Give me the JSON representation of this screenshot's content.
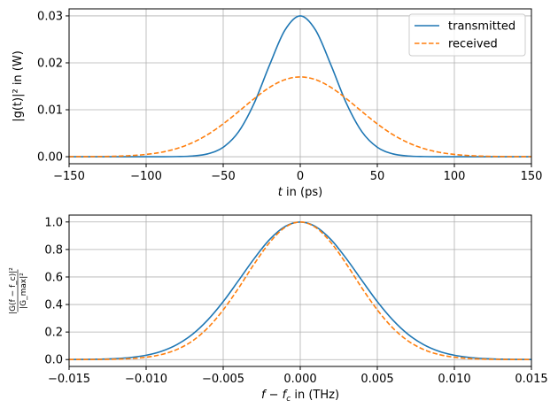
{
  "chart_data": [
    {
      "type": "line",
      "xlabel": {
        "pre": "",
        "var": "t",
        "post": " in (ps)"
      },
      "ylabel": "|g(t)|² in (W)",
      "xlim": [
        -150,
        150
      ],
      "ylim": [
        -0.0015,
        0.0315
      ],
      "xticks": [
        -150,
        -100,
        -50,
        0,
        50,
        100,
        150
      ],
      "xtick_labels": [
        "−150",
        "−100",
        "−50",
        "0",
        "50",
        "100",
        "150"
      ],
      "yticks": [
        0,
        0.01,
        0.02,
        0.03
      ],
      "ytick_labels": [
        "0.00",
        "0.01",
        "0.02",
        "0.03"
      ],
      "grid": true,
      "legend_position": "top-right",
      "x": [
        -150,
        -140,
        -130,
        -120,
        -110,
        -100,
        -90,
        -80,
        -70,
        -60,
        -50,
        -40,
        -30,
        -20,
        -10,
        0,
        10,
        20,
        30,
        40,
        50,
        60,
        70,
        80,
        90,
        100,
        110,
        120,
        130,
        140,
        150
      ],
      "series": [
        {
          "name": "transmitted",
          "color": "#1f77b4",
          "style": "solid",
          "values": [
            0,
            0,
            0,
            0,
            0,
            0,
            0,
            3e-05,
            0.00015,
            0.00061,
            0.00201,
            0.00532,
            0.01133,
            0.01946,
            0.02693,
            0.03,
            0.02693,
            0.01946,
            0.01133,
            0.00532,
            0.00201,
            0.00061,
            0.00015,
            3e-05,
            0,
            0,
            0,
            0,
            0,
            0,
            0
          ]
        },
        {
          "name": "received",
          "color": "#ff7f0e",
          "style": "dashed",
          "values": [
            1e-05,
            2e-05,
            4e-05,
            0.0001,
            0.00023,
            0.00049,
            0.00095,
            0.00175,
            0.00298,
            0.00473,
            0.00699,
            0.00962,
            0.01234,
            0.01475,
            0.01641,
            0.017,
            0.01641,
            0.01475,
            0.01234,
            0.00962,
            0.00699,
            0.00473,
            0.00298,
            0.00175,
            0.00095,
            0.00049,
            0.00023,
            0.0001,
            4e-05,
            2e-05,
            1e-05
          ]
        }
      ]
    },
    {
      "type": "line",
      "xlabel": {
        "pre": "",
        "var": "f − f",
        "sub": "c",
        "post": " in (THz)"
      },
      "ylabel": {
        "numerator": "|G(f − f_c)|²",
        "denominator": "|G_max|²"
      },
      "xlim": [
        -0.015,
        0.015
      ],
      "ylim": [
        -0.05,
        1.05
      ],
      "xticks": [
        -0.015,
        -0.01,
        -0.005,
        0,
        0.005,
        0.01,
        0.015
      ],
      "xtick_labels": [
        "−0.015",
        "−0.010",
        "−0.005",
        "0.000",
        "0.005",
        "0.010",
        "0.015"
      ],
      "yticks": [
        0,
        0.2,
        0.4,
        0.6,
        0.8,
        1.0
      ],
      "ytick_labels": [
        "0.0",
        "0.2",
        "0.4",
        "0.6",
        "0.8",
        "1.0"
      ],
      "grid": true,
      "x": [
        -0.015,
        -0.014,
        -0.013,
        -0.012,
        -0.011,
        -0.01,
        -0.009,
        -0.008,
        -0.007,
        -0.006,
        -0.005,
        -0.004,
        -0.003,
        -0.002,
        -0.001,
        0,
        0.001,
        0.002,
        0.003,
        0.004,
        0.005,
        0.006,
        0.007,
        0.008,
        0.009,
        0.01,
        0.011,
        0.012,
        0.013,
        0.014,
        0.015
      ],
      "series": [
        {
          "color": "#1f77b4",
          "style": "solid",
          "values": [
            0.0004,
            0.0011,
            0.0029,
            0.0068,
            0.0151,
            0.0313,
            0.0605,
            0.109,
            0.183,
            0.288,
            0.421,
            0.575,
            0.732,
            0.871,
            0.966,
            1,
            0.966,
            0.871,
            0.732,
            0.575,
            0.421,
            0.288,
            0.183,
            0.109,
            0.0605,
            0.0313,
            0.0151,
            0.0068,
            0.0029,
            0.0011,
            0.0004
          ]
        },
        {
          "color": "#ff7f0e",
          "style": "dashed",
          "values": [
            0.0001,
            0.0003,
            0.001,
            0.0028,
            0.0072,
            0.0169,
            0.0367,
            0.0734,
            0.135,
            0.23,
            0.361,
            0.52,
            0.693,
            0.849,
            0.96,
            1,
            0.96,
            0.849,
            0.693,
            0.52,
            0.361,
            0.23,
            0.135,
            0.0734,
            0.0367,
            0.0169,
            0.0072,
            0.0028,
            0.001,
            0.0003,
            0.0001
          ]
        }
      ]
    }
  ]
}
